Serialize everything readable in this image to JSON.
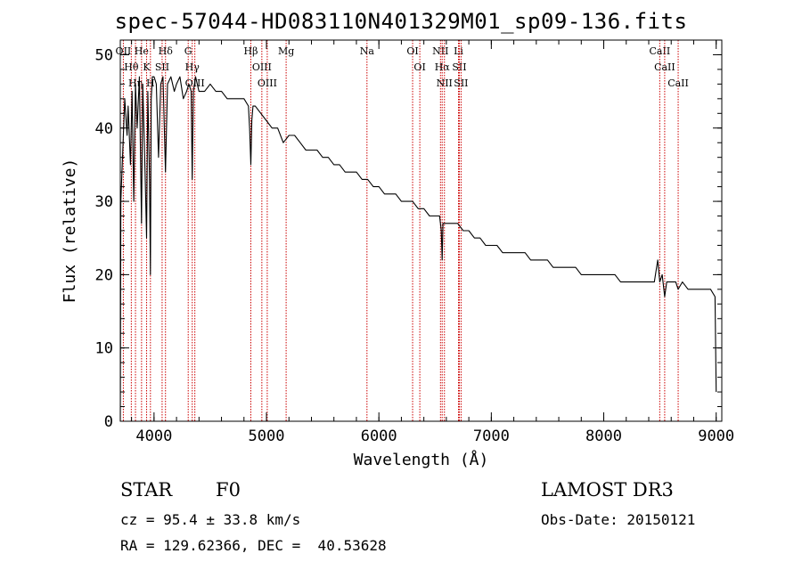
{
  "chart_data": {
    "type": "line",
    "title": "spec-57044-HD083110N401329M01_sp09-136.fits",
    "xlabel": "Wavelength (Å)",
    "ylabel": "Flux (relative)",
    "xlim": [
      3700,
      9050
    ],
    "ylim": [
      0,
      52
    ],
    "xticks": [
      4000,
      5000,
      6000,
      7000,
      8000,
      9000
    ],
    "yticks": [
      0,
      10,
      20,
      30,
      40,
      50
    ],
    "series": [
      {
        "name": "flux",
        "x": [
          3700,
          3705,
          3720,
          3740,
          3760,
          3770,
          3790,
          3805,
          3820,
          3835,
          3850,
          3870,
          3889,
          3900,
          3920,
          3934,
          3945,
          3960,
          3968,
          3975,
          3985,
          4000,
          4020,
          4040,
          4060,
          4080,
          4102,
          4120,
          4150,
          4180,
          4200,
          4230,
          4260,
          4290,
          4310,
          4330,
          4340,
          4350,
          4370,
          4400,
          4450,
          4500,
          4550,
          4600,
          4650,
          4700,
          4750,
          4800,
          4840,
          4850,
          4861,
          4870,
          4880,
          4900,
          4950,
          5000,
          5050,
          5100,
          5150,
          5200,
          5250,
          5300,
          5350,
          5400,
          5450,
          5500,
          5550,
          5600,
          5650,
          5700,
          5750,
          5800,
          5850,
          5900,
          5950,
          6000,
          6050,
          6100,
          6150,
          6200,
          6250,
          6300,
          6350,
          6400,
          6450,
          6500,
          6540,
          6555,
          6563,
          6570,
          6600,
          6650,
          6700,
          6750,
          6800,
          6850,
          6900,
          6950,
          7000,
          7050,
          7100,
          7150,
          7200,
          7250,
          7300,
          7350,
          7400,
          7450,
          7500,
          7550,
          7600,
          7650,
          7700,
          7750,
          7800,
          7850,
          7900,
          7950,
          8000,
          8050,
          8100,
          8150,
          8200,
          8250,
          8300,
          8350,
          8400,
          8450,
          8480,
          8498,
          8520,
          8542,
          8560,
          8600,
          8640,
          8662,
          8700,
          8750,
          8800,
          8850,
          8900,
          8950,
          8990,
          9000
        ],
        "y": [
          0,
          30,
          36,
          44,
          39,
          43,
          35,
          45,
          30,
          46,
          40,
          47,
          27,
          46,
          34,
          25,
          45,
          33,
          20,
          44,
          47,
          47,
          46,
          36,
          46,
          47,
          34,
          46,
          47,
          45,
          46,
          47,
          44,
          45,
          46,
          45,
          33,
          45,
          47,
          45,
          45,
          46,
          45,
          45,
          44,
          44,
          44,
          44,
          43,
          40,
          35,
          41,
          43,
          43,
          42,
          41,
          40,
          40,
          38,
          39,
          39,
          38,
          37,
          37,
          37,
          36,
          36,
          35,
          35,
          34,
          34,
          34,
          33,
          33,
          32,
          32,
          31,
          31,
          31,
          30,
          30,
          30,
          29,
          29,
          28,
          28,
          28,
          26,
          22,
          27,
          27,
          27,
          27,
          26,
          26,
          25,
          25,
          24,
          24,
          24,
          23,
          23,
          23,
          23,
          23,
          22,
          22,
          22,
          22,
          21,
          21,
          21,
          21,
          21,
          20,
          20,
          20,
          20,
          20,
          20,
          20,
          19,
          19,
          19,
          19,
          19,
          19,
          19,
          22,
          19,
          20,
          17,
          19,
          19,
          19,
          18,
          19,
          18,
          18,
          18,
          18,
          18,
          17,
          4
        ]
      }
    ],
    "lines": [
      {
        "label": "OII",
        "wl": 3727
      },
      {
        "label": "Hθ",
        "wl": 3798
      },
      {
        "label": "Hη",
        "wl": 3835
      },
      {
        "label": "He",
        "wl": 3889
      },
      {
        "label": "K",
        "wl": 3934
      },
      {
        "label": "H",
        "wl": 3968
      },
      {
        "label": "Hδ",
        "wl": 4102
      },
      {
        "label": "SII",
        "wl": 4072
      },
      {
        "label": "G",
        "wl": 4304
      },
      {
        "label": "Hγ",
        "wl": 4340
      },
      {
        "label": "OIII",
        "wl": 4363
      },
      {
        "label": "Hβ",
        "wl": 4861
      },
      {
        "label": "OIII",
        "wl": 4959
      },
      {
        "label": "OIII",
        "wl": 5007
      },
      {
        "label": "Mg",
        "wl": 5175
      },
      {
        "label": "Na",
        "wl": 5894
      },
      {
        "label": "OI",
        "wl": 6300
      },
      {
        "label": "OI",
        "wl": 6364
      },
      {
        "label": "NII",
        "wl": 6548
      },
      {
        "label": "Hα",
        "wl": 6563
      },
      {
        "label": "NII",
        "wl": 6583
      },
      {
        "label": "Li",
        "wl": 6708
      },
      {
        "label": "SII",
        "wl": 6716
      },
      {
        "label": "SII",
        "wl": 6731
      },
      {
        "label": "CaII",
        "wl": 8498
      },
      {
        "label": "CaII",
        "wl": 8542
      },
      {
        "label": "CaII",
        "wl": 8662
      }
    ]
  },
  "info": {
    "class_label": "STAR",
    "subclass": "F0",
    "survey": "LAMOST DR3",
    "cz": "cz = 95.4 ± 33.8 km/s",
    "obs_date": "Obs-Date: 20150121",
    "coords": "RA = 129.62366, DEC =  40.53628"
  },
  "colors": {
    "axis": "#000000",
    "line": "#000000",
    "marker": "#cc0000"
  }
}
